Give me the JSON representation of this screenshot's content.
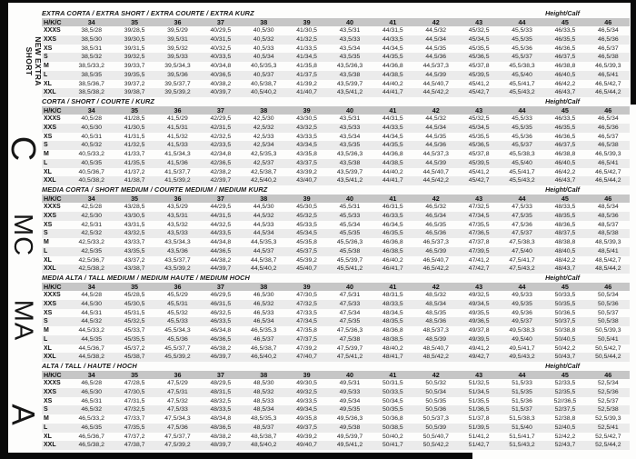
{
  "page": {
    "bg_color": "#fdfdfc",
    "frame_color": "#0a0a0a",
    "header_band_color": "#c6c6c6",
    "alt_row_color": "#ebebeb",
    "text_color": "#1c1c1c"
  },
  "rail": {
    "labels": [
      {
        "id": "new-extra-short",
        "line1": "NEW EXTRA",
        "line2": "SHORT"
      },
      {
        "id": "c",
        "text": "C"
      },
      {
        "id": "mc",
        "text": "MC"
      },
      {
        "id": "ma",
        "text": "MA"
      },
      {
        "id": "a",
        "text": "A"
      }
    ]
  },
  "table": {
    "corner_label": "H/K/C",
    "height_calf_label": "Height/Calf",
    "sizes": [
      "34",
      "35",
      "36",
      "37",
      "38",
      "39",
      "40",
      "41",
      "42",
      "43",
      "44",
      "45",
      "46"
    ],
    "row_labels": [
      "XXXS",
      "XXS",
      "XS",
      "S",
      "M",
      "L",
      "XL",
      "XXL"
    ],
    "sections": [
      {
        "title": "EXTRA CORTA / EXTRA SHORT / EXTRA COURTE / EXTRA KURZ",
        "rows": [
          {
            "label": "XXXS",
            "values": [
              "38,5/28",
              "39/28,5",
              "39,5/29",
              "40/29,5",
              "40,5/30",
              "41/30,5",
              "43,5/31",
              "44/31,5",
              "44,5/32",
              "45/32,5",
              "45,5/33",
              "46/33,5",
              "46,5/34"
            ]
          },
          {
            "label": "XXS",
            "values": [
              "38,5/30",
              "39/30,5",
              "39,5/31",
              "40/31,5",
              "40,5/32",
              "41/32,5",
              "43,5/33",
              "44/33,5",
              "44,5/34",
              "45/34,5",
              "45,5/35",
              "46/35,5",
              "46,5/36"
            ]
          },
          {
            "label": "XS",
            "values": [
              "38,5/31",
              "39/31,5",
              "39,5/32",
              "40/32,5",
              "40,5/33",
              "41/33,5",
              "43,5/34",
              "44/34,5",
              "44,5/35",
              "45/35,5",
              "45,5/36",
              "46/36,5",
              "46,5/37"
            ]
          },
          {
            "label": "S",
            "values": [
              "38,5/32",
              "39/32,5",
              "39,5/33",
              "40/33,5",
              "40,5/34",
              "41/34,5",
              "43,5/35",
              "44/35,5",
              "44,5/36",
              "45/36,5",
              "45,5/37",
              "46/37,5",
              "46,5/38"
            ]
          },
          {
            "label": "M",
            "values": [
              "38,5/33,2",
              "39/33,7",
              "39,5/34,3",
              "40/34,8",
              "40,5/35,3",
              "41/35,8",
              "43,5/36,3",
              "44/36,8",
              "44,5/37,3",
              "45/37,8",
              "45,5/38,3",
              "46/38,8",
              "46,5/39,3"
            ]
          },
          {
            "label": "L",
            "values": [
              "38,5/35",
              "39/35,5",
              "39,5/36",
              "40/36,5",
              "40,5/37",
              "41/37,5",
              "43,5/38",
              "44/38,5",
              "44,5/39",
              "45/39,5",
              "45,5/40",
              "46/40,5",
              "46,5/41"
            ]
          },
          {
            "label": "XL",
            "values": [
              "38,5/36,7",
              "39/37,2",
              "39,5/37,7",
              "40/38,2",
              "40,5/38,7",
              "41/39,2",
              "43,5/39,7",
              "44/40,2",
              "44,5/40,7",
              "45/41,2",
              "45,5/41,7",
              "46/42,2",
              "46,5/42,7"
            ]
          },
          {
            "label": "XXL",
            "values": [
              "38,5/38,2",
              "39/38,7",
              "39,5/39,2",
              "40/39,7",
              "40,5/40,2",
              "41/40,7",
              "43,5/41,2",
              "44/41,7",
              "44,5/42,2",
              "45/42,7",
              "45,5/43,2",
              "46/43,7",
              "46,5/44,2"
            ]
          }
        ]
      },
      {
        "title": "CORTA / SHORT / COURTE / KURZ",
        "rows": [
          {
            "label": "XXXS",
            "values": [
              "40,5/28",
              "41/28,5",
              "41,5/29",
              "42/29,5",
              "42,5/30",
              "43/30,5",
              "43,5/31",
              "44/31,5",
              "44,5/32",
              "45/32,5",
              "45,5/33",
              "46/33,5",
              "46,5/34"
            ]
          },
          {
            "label": "XXS",
            "values": [
              "40,5/30",
              "41/30,5",
              "41,5/31",
              "42/31,5",
              "42,5/32",
              "43/32,5",
              "43,5/33",
              "44/33,5",
              "44,5/34",
              "45/34,5",
              "45,5/35",
              "46/35,5",
              "46,5/36"
            ]
          },
          {
            "label": "XS",
            "values": [
              "40,5/31",
              "41/31,5",
              "41,5/32",
              "42/32,5",
              "42,5/33",
              "43/33,5",
              "43,5/34",
              "44/34,5",
              "44,5/35",
              "45/35,5",
              "45,5/36",
              "46/36,5",
              "46,5/37"
            ]
          },
          {
            "label": "S",
            "values": [
              "40,5/32",
              "41/32,5",
              "41,5/33",
              "42/33,5",
              "42,5/34",
              "43/34,5",
              "43,5/35",
              "44/35,5",
              "44,5/36",
              "45/36,5",
              "45,5/37",
              "46/37,5",
              "46,5/38"
            ]
          },
          {
            "label": "M",
            "values": [
              "40,5/33,2",
              "41/33,7",
              "41,5/34,3",
              "42/34,8",
              "42,5/35,3",
              "43/35,8",
              "43,5/36,3",
              "44/36,8",
              "44,5/37,3",
              "45/37,8",
              "45,5/38,3",
              "46/38,8",
              "46,5/39,3"
            ]
          },
          {
            "label": "L",
            "values": [
              "40,5/35",
              "41/35,5",
              "41,5/36",
              "42/36,5",
              "42,5/37",
              "43/37,5",
              "43,5/38",
              "44/38,5",
              "44,5/39",
              "45/39,5",
              "45,5/40",
              "46/40,5",
              "46,5/41"
            ]
          },
          {
            "label": "XL",
            "values": [
              "40,5/36,7",
              "41/37,2",
              "41,5/37,7",
              "42/38,2",
              "42,5/38,7",
              "43/39,2",
              "43,5/39,7",
              "44/40,2",
              "44,5/40,7",
              "45/41,2",
              "45,5/41,7",
              "46/42,2",
              "46,5/42,7"
            ]
          },
          {
            "label": "XXL",
            "values": [
              "40,5/38,2",
              "41/38,7",
              "41,5/39,2",
              "42/39,7",
              "42,5/40,2",
              "43/40,7",
              "43,5/41,2",
              "44/41,7",
              "44,5/42,2",
              "45/42,7",
              "45,5/43,2",
              "46/43,7",
              "46,5/44,2"
            ]
          }
        ]
      },
      {
        "title": "MEDIA CORTA / SHORT MEDIUM / COURTE MEDIUM / MEDIUM KURZ",
        "rows": [
          {
            "label": "XXXS",
            "values": [
              "42,5/28",
              "43/28,5",
              "43,5/29",
              "44/29,5",
              "44,5/30",
              "45/30,5",
              "45,5/31",
              "46/31,5",
              "46,5/32",
              "47/32,5",
              "47,5/33",
              "48/33,5",
              "48,5/34"
            ]
          },
          {
            "label": "XXS",
            "values": [
              "42,5/30",
              "43/30,5",
              "43,5/31",
              "44/31,5",
              "44,5/32",
              "45/32,5",
              "45,5/33",
              "46/33,5",
              "46,5/34",
              "47/34,5",
              "47,5/35",
              "48/35,5",
              "48,5/36"
            ]
          },
          {
            "label": "XS",
            "values": [
              "42,5/31",
              "43/31,5",
              "43,5/32",
              "44/32,5",
              "44,5/33",
              "45/33,5",
              "45,5/34",
              "46/34,5",
              "46,5/35",
              "47/35,5",
              "47,5/36",
              "48/36,5",
              "48,5/37"
            ]
          },
          {
            "label": "S",
            "values": [
              "42,5/32",
              "43/32,5",
              "43,5/33",
              "44/33,5",
              "44,5/34",
              "45/34,5",
              "45,5/35",
              "46/35,5",
              "46,5/36",
              "47/36,5",
              "47,5/37",
              "48/37,5",
              "48,5/38"
            ]
          },
          {
            "label": "M",
            "values": [
              "42,5/33,2",
              "43/33,7",
              "43,5/34,3",
              "44/34,8",
              "44,5/35,3",
              "45/35,8",
              "45,5/36,3",
              "46/36,8",
              "46,5/37,3",
              "47/37,8",
              "47,5/38,3",
              "48/38,8",
              "48,5/39,3"
            ]
          },
          {
            "label": "L",
            "values": [
              "42,5/35",
              "43/35,5",
              "43,5/36",
              "44/36,5",
              "44,5/37",
              "45/37,5",
              "45,5/38",
              "46/38,5",
              "46,5/39",
              "47/39,5",
              "47,5/40",
              "48/40,5",
              "48,5/41"
            ]
          },
          {
            "label": "XL",
            "values": [
              "42,5/36,7",
              "43/37,2",
              "43,5/37,7",
              "44/38,2",
              "44,5/38,7",
              "45/39,2",
              "45,5/39,7",
              "46/40,2",
              "46,5/40,7",
              "47/41,2",
              "47,5/41,7",
              "48/42,2",
              "48,5/42,7"
            ]
          },
          {
            "label": "XXL",
            "values": [
              "42,5/38,2",
              "43/38,7",
              "43,5/39,2",
              "44/39,7",
              "44,5/40,2",
              "45/40,7",
              "45,5/41,2",
              "46/41,7",
              "46,5/42,2",
              "47/42,7",
              "47,5/43,2",
              "48/43,7",
              "48,5/44,2"
            ]
          }
        ]
      },
      {
        "title": "MEDIA ALTA / TALL MEDIUM / MEDIUM HAUTE / MEDIUM HOCH",
        "rows": [
          {
            "label": "XXXS",
            "values": [
              "44,5/28",
              "45/28,5",
              "45,5/29",
              "46/29,5",
              "46,5/30",
              "47/30,5",
              "47,5/31",
              "48/31,5",
              "48,5/32",
              "49/32,5",
              "49,5/33",
              "50/33,5",
              "50,5/34"
            ]
          },
          {
            "label": "XXS",
            "values": [
              "44,5/30",
              "45/30,5",
              "45,5/31",
              "46/31,5",
              "46,5/32",
              "47/32,5",
              "47,5/33",
              "48/33,5",
              "48,5/34",
              "49/34,5",
              "49,5/35",
              "50/35,5",
              "50,5/36"
            ]
          },
          {
            "label": "XS",
            "values": [
              "44,5/31",
              "45/31,5",
              "45,5/32",
              "46/32,5",
              "46,5/33",
              "47/33,5",
              "47,5/34",
              "48/34,5",
              "48,5/35",
              "49/35,5",
              "49,5/36",
              "50/36,5",
              "50,5/37"
            ]
          },
          {
            "label": "S",
            "values": [
              "44,5/32",
              "45/32,5",
              "45,5/33",
              "46/33,5",
              "46,5/34",
              "47/34,5",
              "47,5/35",
              "48/35,5",
              "48,5/36",
              "49/36,5",
              "49,5/37",
              "50/37,5",
              "50,5/38"
            ]
          },
          {
            "label": "M",
            "values": [
              "44,5/33,2",
              "45/33,7",
              "45,5/34,3",
              "46/34,8",
              "46,5/35,3",
              "47/35,8",
              "47,5/36,3",
              "48/36,8",
              "48,5/37,3",
              "49/37,8",
              "49,5/38,3",
              "50/38,8",
              "50,5/39,3"
            ]
          },
          {
            "label": "L",
            "values": [
              "44,5/35",
              "45/35,5",
              "45,5/36",
              "46/36,5",
              "46,5/37",
              "47/37,5",
              "47,5/38",
              "48/38,5",
              "48,5/39",
              "49/39,5",
              "49,5/40",
              "50/40,5",
              "50,5/41"
            ]
          },
          {
            "label": "XL",
            "values": [
              "44,5/36,7",
              "45/37,2",
              "45,5/37,7",
              "46/38,2",
              "46,5/38,7",
              "47/39,2",
              "47,5/39,7",
              "48/40,2",
              "48,5/40,7",
              "49/41,2",
              "49,5/41,7",
              "50/42,2",
              "50,5/42,7"
            ]
          },
          {
            "label": "XXL",
            "values": [
              "44,5/38,2",
              "45/38,7",
              "45,5/39,2",
              "46/39,7",
              "46,5/40,2",
              "47/40,7",
              "47,5/41,2",
              "48/41,7",
              "48,5/42,2",
              "49/42,7",
              "49,5/43,2",
              "50/43,7",
              "50,5/44,2"
            ]
          }
        ]
      },
      {
        "title": "ALTA / TALL / HAUTE / HOCH",
        "rows": [
          {
            "label": "XXXS",
            "values": [
              "46,5/28",
              "47/28,5",
              "47,5/29",
              "48/29,5",
              "48,5/30",
              "49/30,5",
              "49,5/31",
              "50/31,5",
              "50,5/32",
              "51/32,5",
              "51,5/33",
              "52/33,5",
              "52,5/34"
            ]
          },
          {
            "label": "XXS",
            "values": [
              "46,5/30",
              "47/30,5",
              "47,5/31",
              "48/31,5",
              "48,5/32",
              "49/32,5",
              "49,5/33",
              "50/33,5",
              "50,5/34",
              "51/34,5",
              "51,5/35",
              "52/35,5",
              "52,5/36"
            ]
          },
          {
            "label": "XS",
            "values": [
              "46,5/31",
              "47/31,5",
              "47,5/32",
              "48/32,5",
              "48,5/33",
              "49/33,5",
              "49,5/34",
              "50/34,5",
              "50,5/35",
              "51/35,5",
              "51,5/36",
              "52//36,5",
              "52,5/37"
            ]
          },
          {
            "label": "S",
            "values": [
              "46,5/32",
              "47/32,5",
              "47,5/33",
              "48/33,5",
              "48,5/34",
              "49/34,5",
              "49,5/35",
              "50/35,5",
              "50,5/36",
              "51/36,5",
              "51,5/37",
              "52/37,5",
              "52,5/38"
            ]
          },
          {
            "label": "M",
            "values": [
              "46,5/33,2",
              "47/33,7",
              "47,5/34,3",
              "48/34,8",
              "48,5/35,3",
              "49/35,8",
              "49,5/36,3",
              "50/36,8",
              "50,5/37,3",
              "51/37,8",
              "51,5/38,3",
              "52/38,8",
              "52,5/39,3"
            ]
          },
          {
            "label": "L",
            "values": [
              "46,5/35",
              "47/35,5",
              "47,5/36",
              "48/36,5",
              "48,5/37",
              "49/37,5",
              "49,5/38",
              "50/38,5",
              "50,5/39",
              "51/39,5",
              "51,5/40",
              "52/40,5",
              "52,5/41"
            ]
          },
          {
            "label": "XL",
            "values": [
              "46,5/36,7",
              "47/37,2",
              "47,5/37,7",
              "48/38,2",
              "48,5/38,7",
              "49/39,2",
              "49,5/39,7",
              "50/40,2",
              "50,5/40,7",
              "51/41,2",
              "51,5/41,7",
              "52/42,2",
              "52,5/42,7"
            ]
          },
          {
            "label": "XXL",
            "values": [
              "46,5/38,2",
              "47/38,7",
              "47,5/39,2",
              "48/39,7",
              "48,5/40,2",
              "49/40,7",
              "49,5/41,2",
              "50/41,7",
              "50,5/42,2",
              "51/42,7",
              "51,5/43,2",
              "52/43,7",
              "52,5/44,2"
            ]
          }
        ]
      }
    ]
  }
}
